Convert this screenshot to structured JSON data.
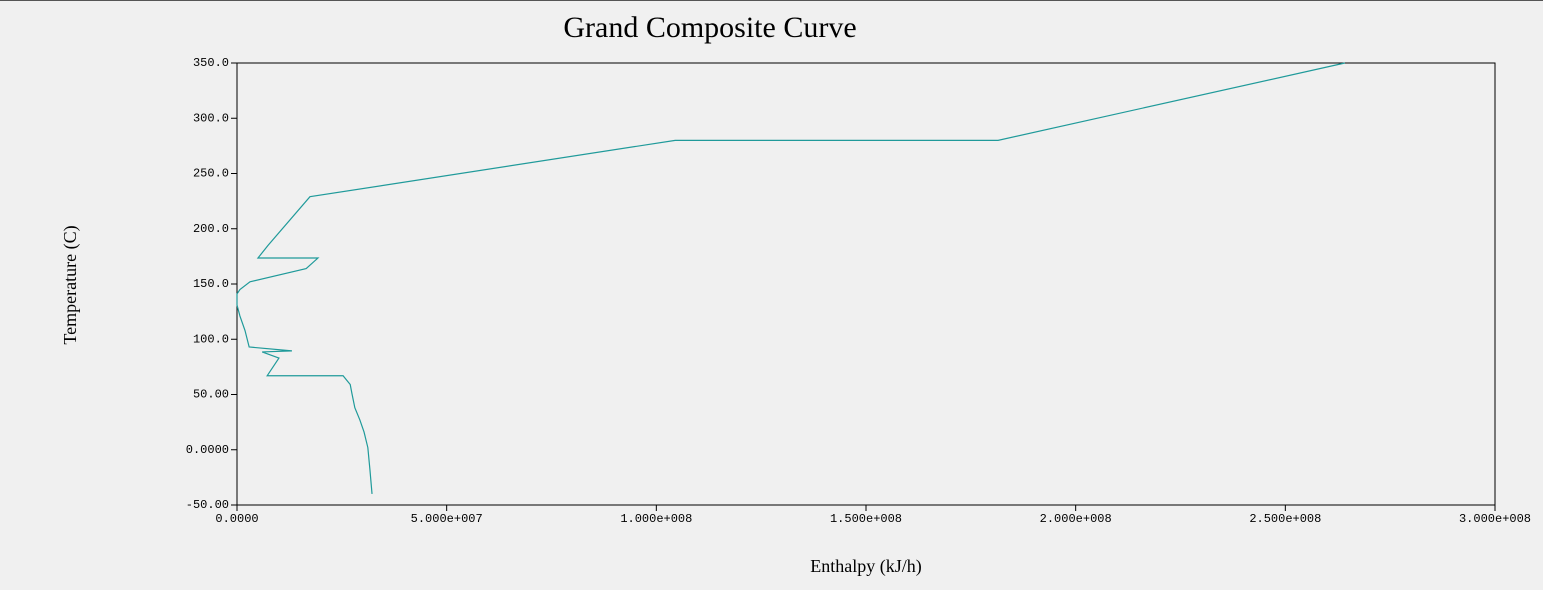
{
  "chart_data": {
    "type": "line",
    "title": "Grand Composite Curve",
    "x_label": "Enthalpy (kJ/h)",
    "y_label": "Temperature (C)",
    "series": [
      {
        "color": "#1f9a9a",
        "x": [
          32200000,
          31700000,
          31200000,
          30300000,
          29300000,
          28100000,
          27400000,
          27000000,
          25300000,
          7200000,
          10000000,
          6000000,
          13100000,
          2900000,
          1900000,
          700000,
          0,
          0,
          700000,
          3100000,
          16500000,
          19300000,
          5000000,
          7400000,
          17400000,
          104500000,
          181500000,
          264200000
        ],
        "values": [
          -40,
          -18,
          2,
          16,
          27,
          38,
          51,
          59,
          67,
          67,
          83,
          88.5,
          89.5,
          93,
          108,
          121,
          131,
          141,
          145,
          152,
          164,
          173.5,
          173.5,
          185,
          229,
          280,
          280,
          350
        ]
      }
    ],
    "xlim": [
      0,
      300000000
    ],
    "xticks": [
      {
        "value": 0,
        "label": "0.0000"
      },
      {
        "value": 50000000,
        "label": "5.000e+007"
      },
      {
        "value": 100000000,
        "label": "1.000e+008"
      },
      {
        "value": 150000000,
        "label": "1.500e+008"
      },
      {
        "value": 200000000,
        "label": "2.000e+008"
      },
      {
        "value": 250000000,
        "label": "2.500e+008"
      },
      {
        "value": 300000000,
        "label": "3.000e+008"
      }
    ],
    "ylim": [
      -50,
      350
    ],
    "yticks": [
      {
        "value": -50,
        "label": "-50.00"
      },
      {
        "value": 0,
        "label": "0.0000"
      },
      {
        "value": 50,
        "label": "50.00"
      },
      {
        "value": 100,
        "label": "100.0"
      },
      {
        "value": 150,
        "label": "150.0"
      },
      {
        "value": 200,
        "label": "200.0"
      },
      {
        "value": 250,
        "label": "250.0"
      },
      {
        "value": 300,
        "label": "300.0"
      },
      {
        "value": 350,
        "label": "350.0"
      }
    ],
    "grid": false
  }
}
